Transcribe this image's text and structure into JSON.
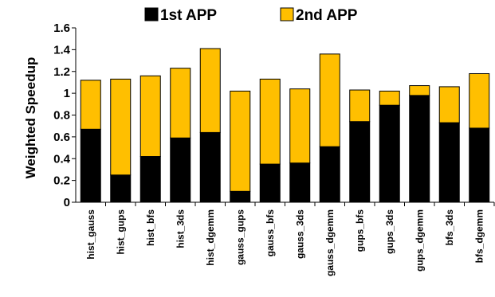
{
  "chart_data": {
    "type": "bar",
    "stacked": true,
    "title": "",
    "xlabel": "",
    "ylabel": "Weighted Speedup",
    "ylim": [
      0,
      1.6
    ],
    "yticks": [
      "0",
      "0.2",
      "0.4",
      "0.6",
      "0.8",
      "1",
      "1.2",
      "1.4",
      "1.6"
    ],
    "grid": false,
    "legend_position": "top",
    "categories": [
      "hist_gauss",
      "hist_gups",
      "hist_bfs",
      "hist_3ds",
      "hist_dgemm",
      "gauss_gups",
      "gauss_bfs",
      "gauss_3ds",
      "gauss_dgemm",
      "gups_bfs",
      "gups_3ds",
      "gups_dgemm",
      "bfs_3ds",
      "bfs_dgemm"
    ],
    "series": [
      {
        "name": "1st APP",
        "color": "#000000",
        "values": [
          0.67,
          0.25,
          0.42,
          0.59,
          0.64,
          0.1,
          0.35,
          0.36,
          0.51,
          0.74,
          0.89,
          0.98,
          0.73,
          0.68
        ]
      },
      {
        "name": "2nd APP",
        "color": "#FFBF00",
        "values": [
          0.45,
          0.88,
          0.74,
          0.64,
          0.77,
          0.92,
          0.78,
          0.68,
          0.85,
          0.29,
          0.13,
          0.09,
          0.33,
          0.5
        ]
      }
    ]
  }
}
